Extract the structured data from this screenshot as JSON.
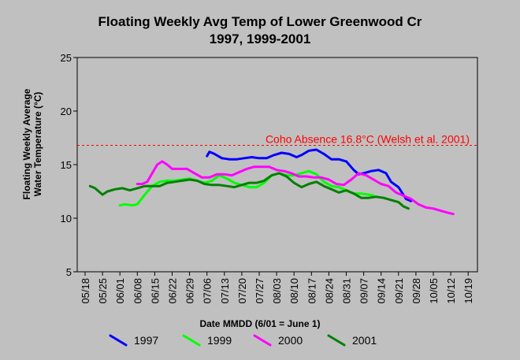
{
  "chart_data": {
    "type": "line",
    "title": "Floating Weekly Avg Temp of Lower Greenwood Cr",
    "subtitle": "1997, 1999-2001",
    "xlabel": "Date MMDD (6/01 = June 1)",
    "ylabel_line1": "Floating Weekly Average",
    "ylabel_line2": "Water Temperature (°C)",
    "ylim": [
      5,
      25
    ],
    "yticks": [
      5,
      10,
      15,
      20,
      25
    ],
    "ytick_labels": [
      "5",
      "10",
      "15",
      "20",
      "25"
    ],
    "xlim": [
      0,
      152
    ],
    "xtick_labels": [
      "05/18",
      "05/25",
      "06/01",
      "06/08",
      "06/15",
      "06/22",
      "06/29",
      "07/06",
      "07/13",
      "07/20",
      "07/27",
      "08/03",
      "08/10",
      "08/17",
      "08/24",
      "08/31",
      "09/07",
      "09/14",
      "09/21",
      "09/28",
      "10/05",
      "10/12",
      "10/19"
    ],
    "grid": false,
    "legend_position": "bottom",
    "reference_line": {
      "y": 16.8,
      "label": "Coho Absence 16.8°C (Welsh et al. 2001)",
      "color": "#ff0000"
    },
    "series": [
      {
        "name": "1997",
        "color": "#0000ff",
        "points": [
          [
            49,
            15.8
          ],
          [
            50,
            16.2
          ],
          [
            52,
            16.0
          ],
          [
            55,
            15.6
          ],
          [
            58,
            15.5
          ],
          [
            61,
            15.5
          ],
          [
            64,
            15.6
          ],
          [
            67,
            15.7
          ],
          [
            70,
            15.6
          ],
          [
            73,
            15.6
          ],
          [
            76,
            15.9
          ],
          [
            79,
            16.1
          ],
          [
            82,
            16.0
          ],
          [
            85,
            15.7
          ],
          [
            87,
            15.9
          ],
          [
            90,
            16.3
          ],
          [
            93,
            16.4
          ],
          [
            96,
            16.0
          ],
          [
            99,
            15.5
          ],
          [
            102,
            15.5
          ],
          [
            105,
            15.3
          ],
          [
            108,
            14.5
          ],
          [
            110,
            14.1
          ],
          [
            112,
            14.2
          ],
          [
            115,
            14.4
          ],
          [
            118,
            14.5
          ],
          [
            121,
            14.2
          ],
          [
            123,
            13.4
          ],
          [
            126,
            12.9
          ],
          [
            129,
            11.8
          ],
          [
            131,
            11.6
          ]
        ]
      },
      {
        "name": "1999",
        "color": "#00ff00",
        "points": [
          [
            14,
            11.2
          ],
          [
            16,
            11.3
          ],
          [
            19,
            11.2
          ],
          [
            21,
            11.3
          ],
          [
            24,
            12.2
          ],
          [
            27,
            13.0
          ],
          [
            30,
            13.4
          ],
          [
            33,
            13.5
          ],
          [
            36,
            13.5
          ],
          [
            39,
            13.6
          ],
          [
            42,
            13.7
          ],
          [
            45,
            13.5
          ],
          [
            48,
            13.3
          ],
          [
            51,
            13.5
          ],
          [
            54,
            14.0
          ],
          [
            57,
            13.7
          ],
          [
            60,
            13.3
          ],
          [
            63,
            13.1
          ],
          [
            66,
            12.9
          ],
          [
            69,
            12.9
          ],
          [
            72,
            13.3
          ],
          [
            75,
            14.0
          ],
          [
            78,
            14.2
          ],
          [
            81,
            14.0
          ],
          [
            84,
            14.0
          ],
          [
            87,
            14.2
          ],
          [
            90,
            14.4
          ],
          [
            93,
            14.1
          ],
          [
            96,
            13.4
          ],
          [
            99,
            13.0
          ],
          [
            102,
            12.9
          ],
          [
            105,
            12.6
          ],
          [
            108,
            12.3
          ],
          [
            111,
            12.3
          ],
          [
            114,
            12.2
          ],
          [
            116,
            12.1
          ]
        ]
      },
      {
        "name": "2000",
        "color": "#ff00ff",
        "points": [
          [
            21,
            13.2
          ],
          [
            23,
            13.2
          ],
          [
            25,
            13.4
          ],
          [
            27,
            14.2
          ],
          [
            29,
            15.0
          ],
          [
            31,
            15.3
          ],
          [
            33,
            15.0
          ],
          [
            35,
            14.6
          ],
          [
            38,
            14.6
          ],
          [
            41,
            14.6
          ],
          [
            44,
            14.2
          ],
          [
            47,
            13.8
          ],
          [
            50,
            13.8
          ],
          [
            53,
            14.1
          ],
          [
            56,
            14.1
          ],
          [
            59,
            14.0
          ],
          [
            62,
            14.3
          ],
          [
            65,
            14.6
          ],
          [
            68,
            14.8
          ],
          [
            71,
            14.8
          ],
          [
            74,
            14.8
          ],
          [
            77,
            14.5
          ],
          [
            80,
            14.4
          ],
          [
            83,
            14.2
          ],
          [
            86,
            13.9
          ],
          [
            89,
            13.9
          ],
          [
            92,
            13.8
          ],
          [
            95,
            13.8
          ],
          [
            98,
            13.6
          ],
          [
            101,
            13.2
          ],
          [
            104,
            13.1
          ],
          [
            107,
            13.6
          ],
          [
            110,
            14.2
          ],
          [
            113,
            14.0
          ],
          [
            116,
            13.6
          ],
          [
            119,
            13.2
          ],
          [
            122,
            13.0
          ],
          [
            125,
            12.4
          ],
          [
            128,
            12.1
          ],
          [
            131,
            11.8
          ],
          [
            134,
            11.3
          ],
          [
            137,
            11.0
          ],
          [
            140,
            10.9
          ],
          [
            143,
            10.7
          ],
          [
            146,
            10.5
          ],
          [
            148,
            10.4
          ]
        ]
      },
      {
        "name": "2001",
        "color": "#008000",
        "points": [
          [
            2,
            13.0
          ],
          [
            4,
            12.8
          ],
          [
            7,
            12.2
          ],
          [
            9,
            12.5
          ],
          [
            12,
            12.7
          ],
          [
            15,
            12.8
          ],
          [
            18,
            12.6
          ],
          [
            21,
            12.8
          ],
          [
            24,
            13.0
          ],
          [
            27,
            13.0
          ],
          [
            30,
            13.0
          ],
          [
            33,
            13.3
          ],
          [
            36,
            13.4
          ],
          [
            39,
            13.5
          ],
          [
            42,
            13.6
          ],
          [
            45,
            13.5
          ],
          [
            48,
            13.2
          ],
          [
            51,
            13.1
          ],
          [
            54,
            13.1
          ],
          [
            57,
            13.0
          ],
          [
            60,
            12.9
          ],
          [
            63,
            13.1
          ],
          [
            66,
            13.3
          ],
          [
            69,
            13.3
          ],
          [
            72,
            13.5
          ],
          [
            75,
            14.0
          ],
          [
            78,
            14.2
          ],
          [
            81,
            13.9
          ],
          [
            84,
            13.3
          ],
          [
            87,
            12.9
          ],
          [
            90,
            13.2
          ],
          [
            93,
            13.4
          ],
          [
            96,
            13.0
          ],
          [
            99,
            12.7
          ],
          [
            102,
            12.4
          ],
          [
            105,
            12.6
          ],
          [
            108,
            12.3
          ],
          [
            111,
            11.9
          ],
          [
            114,
            11.9
          ],
          [
            117,
            12.0
          ],
          [
            120,
            11.9
          ],
          [
            123,
            11.7
          ],
          [
            126,
            11.5
          ],
          [
            128,
            11.1
          ],
          [
            130,
            10.9
          ]
        ]
      }
    ]
  }
}
